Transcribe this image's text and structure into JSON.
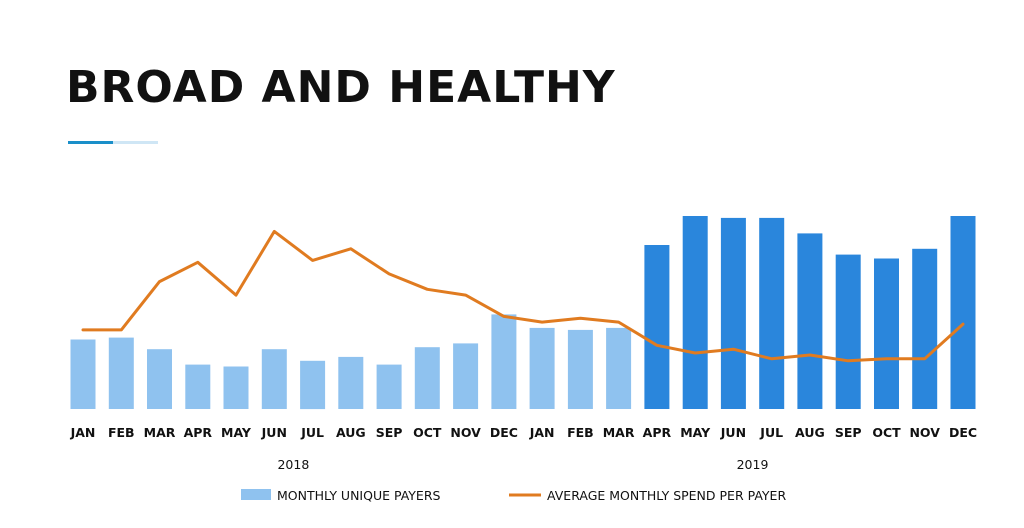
{
  "title": "BROAD AND HEALTHY",
  "colors": {
    "bar_light": "#8fc2ef",
    "bar_dark": "#2a86dc",
    "line": "#e07b20",
    "accent": "#1a8fc9",
    "accent_light": "#cfe6f5",
    "text": "#111111"
  },
  "chart_data": {
    "type": "bar",
    "title": "BROAD AND HEALTHY",
    "categories": [
      "JAN",
      "FEB",
      "MAR",
      "APR",
      "MAY",
      "JUN",
      "JUL",
      "AUG",
      "SEP",
      "OCT",
      "NOV",
      "DEC",
      "JAN",
      "FEB",
      "MAR",
      "APR",
      "MAY",
      "JUN",
      "JUL",
      "AUG",
      "SEP",
      "OCT",
      "NOV",
      "DEC"
    ],
    "year_groups": [
      {
        "label": "2018",
        "start": 0,
        "end": 11
      },
      {
        "label": "2019",
        "start": 12,
        "end": 23
      }
    ],
    "highlight_from_index": 15,
    "ylim": [
      0,
      100
    ],
    "series": [
      {
        "name": "MONTHLY UNIQUE PAYERS",
        "type": "bar",
        "values": [
          36,
          37,
          31,
          23,
          22,
          31,
          25,
          27,
          23,
          32,
          34,
          49,
          42,
          41,
          42,
          85,
          100,
          99,
          99,
          91,
          80,
          78,
          83,
          100
        ]
      },
      {
        "name": "AVERAGE MONTHLY SPEND PER PAYER",
        "type": "line",
        "values": [
          41,
          41,
          66,
          76,
          59,
          92,
          77,
          83,
          70,
          62,
          59,
          48,
          45,
          47,
          45,
          33,
          29,
          31,
          26,
          28,
          25,
          26,
          26,
          44
        ]
      }
    ]
  }
}
